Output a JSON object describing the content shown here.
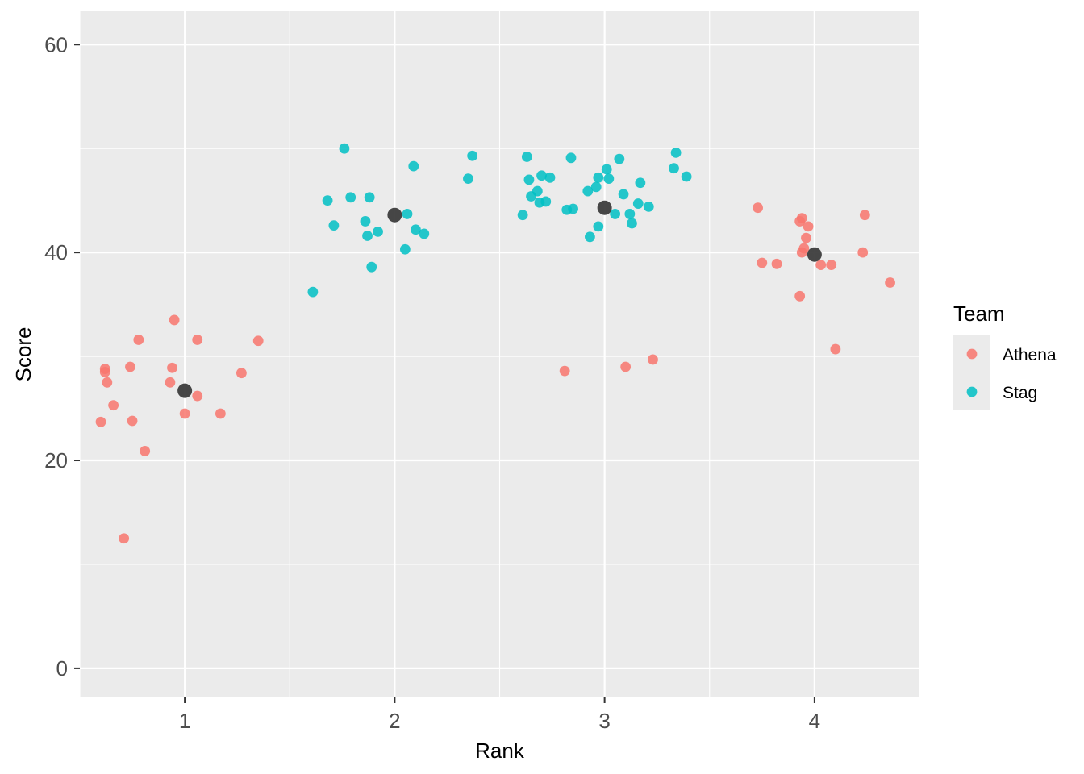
{
  "chart_data": {
    "type": "scatter",
    "xlabel": "Rank",
    "ylabel": "Score",
    "xlim": [
      0.5,
      4.5
    ],
    "ylim": [
      -2.8,
      63.2
    ],
    "x_ticks": [
      1,
      2,
      3,
      4
    ],
    "x_tick_labels": [
      "1",
      "2",
      "3",
      "4"
    ],
    "y_ticks": [
      0,
      20,
      40,
      60
    ],
    "y_tick_labels": [
      "0",
      "20",
      "40",
      "60"
    ],
    "grid": true,
    "background": "#ebebeb",
    "legend": {
      "title": "Team",
      "position": "right",
      "entries": [
        {
          "name": "Athena",
          "color": "#f8766d"
        },
        {
          "name": "Stag",
          "color": "#00bfc4"
        }
      ]
    },
    "series": [
      {
        "name": "Athena",
        "color": "#f8766d",
        "points": [
          [
            0.6,
            23.7
          ],
          [
            0.62,
            28.5
          ],
          [
            0.62,
            28.8
          ],
          [
            0.63,
            27.5
          ],
          [
            0.66,
            25.3
          ],
          [
            0.71,
            12.5
          ],
          [
            0.74,
            29.0
          ],
          [
            0.75,
            23.8
          ],
          [
            0.78,
            31.6
          ],
          [
            0.81,
            20.9
          ],
          [
            0.93,
            27.5
          ],
          [
            0.94,
            28.9
          ],
          [
            0.95,
            33.5
          ],
          [
            1.0,
            24.5
          ],
          [
            1.06,
            31.6
          ],
          [
            1.06,
            26.2
          ],
          [
            1.17,
            24.5
          ],
          [
            1.27,
            28.4
          ],
          [
            1.35,
            31.5
          ],
          [
            2.81,
            28.6
          ],
          [
            3.1,
            29.0
          ],
          [
            3.23,
            29.7
          ],
          [
            3.73,
            44.3
          ],
          [
            3.75,
            39.0
          ],
          [
            3.82,
            38.9
          ],
          [
            3.93,
            35.8
          ],
          [
            3.93,
            43.0
          ],
          [
            3.94,
            40.0
          ],
          [
            3.94,
            43.3
          ],
          [
            3.95,
            40.4
          ],
          [
            3.96,
            41.4
          ],
          [
            3.97,
            42.5
          ],
          [
            4.03,
            38.8
          ],
          [
            4.08,
            38.8
          ],
          [
            4.1,
            30.7
          ],
          [
            4.23,
            40.0
          ],
          [
            4.24,
            43.6
          ],
          [
            4.36,
            37.1
          ]
        ]
      },
      {
        "name": "Stag",
        "color": "#00bfc4",
        "points": [
          [
            1.61,
            36.2
          ],
          [
            1.68,
            45.0
          ],
          [
            1.71,
            42.6
          ],
          [
            1.76,
            50.0
          ],
          [
            1.79,
            45.3
          ],
          [
            1.86,
            43.0
          ],
          [
            1.87,
            41.6
          ],
          [
            1.88,
            45.3
          ],
          [
            1.89,
            38.6
          ],
          [
            1.92,
            42.0
          ],
          [
            2.05,
            40.3
          ],
          [
            2.06,
            43.7
          ],
          [
            2.09,
            48.3
          ],
          [
            2.1,
            42.2
          ],
          [
            2.14,
            41.8
          ],
          [
            2.35,
            47.1
          ],
          [
            2.37,
            49.3
          ],
          [
            2.61,
            43.6
          ],
          [
            2.63,
            49.2
          ],
          [
            2.64,
            47.0
          ],
          [
            2.65,
            45.4
          ],
          [
            2.68,
            45.9
          ],
          [
            2.69,
            44.8
          ],
          [
            2.7,
            47.4
          ],
          [
            2.72,
            44.9
          ],
          [
            2.74,
            47.2
          ],
          [
            2.82,
            44.1
          ],
          [
            2.84,
            49.1
          ],
          [
            2.85,
            44.2
          ],
          [
            2.92,
            45.9
          ],
          [
            2.93,
            41.5
          ],
          [
            2.96,
            46.3
          ],
          [
            2.97,
            47.2
          ],
          [
            2.97,
            42.5
          ],
          [
            3.01,
            48.0
          ],
          [
            3.02,
            47.1
          ],
          [
            3.05,
            43.7
          ],
          [
            3.07,
            49.0
          ],
          [
            3.09,
            45.6
          ],
          [
            3.12,
            43.7
          ],
          [
            3.13,
            42.8
          ],
          [
            3.16,
            44.7
          ],
          [
            3.17,
            46.7
          ],
          [
            3.21,
            44.4
          ],
          [
            3.33,
            48.1
          ],
          [
            3.34,
            49.6
          ],
          [
            3.39,
            47.3
          ]
        ]
      }
    ],
    "mean_points": {
      "color": "#3d3d3d",
      "points": [
        [
          1,
          26.7
        ],
        [
          2,
          43.6
        ],
        [
          3,
          44.3
        ],
        [
          4,
          39.8
        ]
      ]
    }
  }
}
